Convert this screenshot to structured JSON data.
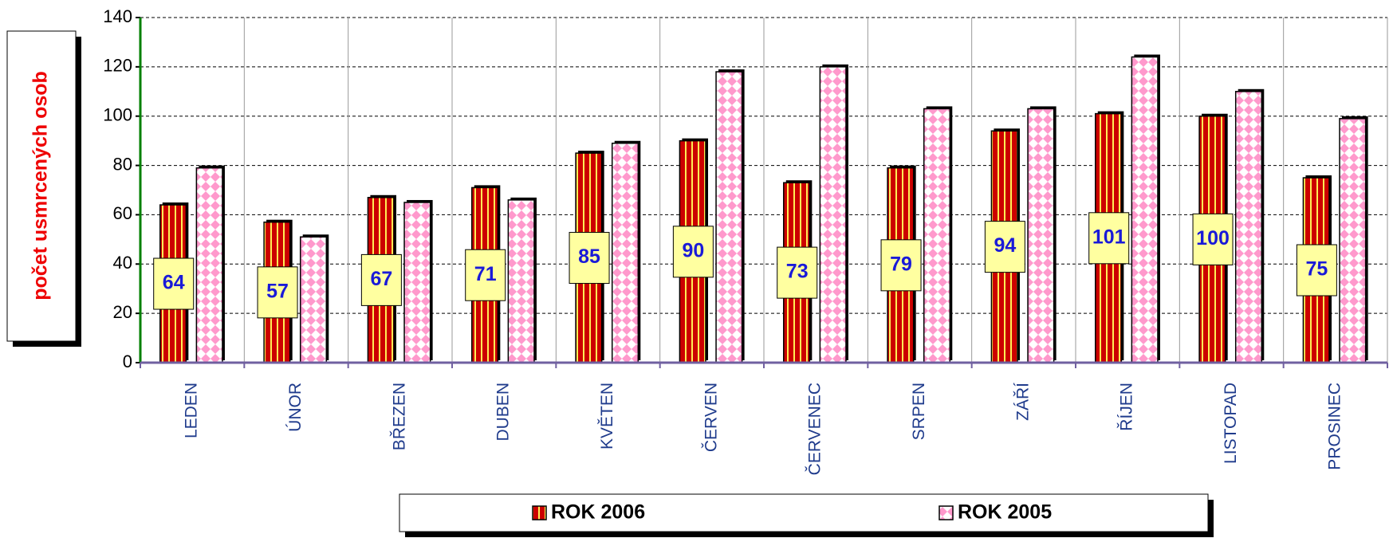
{
  "chart_data": {
    "type": "bar",
    "y_label": "počet usmrcených osob",
    "categories": [
      "LEDEN",
      "ÚNOR",
      "BŘEZEN",
      "DUBEN",
      "KVĚTEN",
      "ČERVEN",
      "ČERVENEC",
      "SRPEN",
      "ZÁŘÍ",
      "ŘÍJEN",
      "LISTOPAD",
      "PROSINEC"
    ],
    "series": [
      {
        "name": "ROK 2006",
        "color": "#cc0000",
        "values": [
          64,
          57,
          67,
          71,
          85,
          90,
          73,
          79,
          94,
          101,
          100,
          75
        ]
      },
      {
        "name": "ROK 2005",
        "color": "#ff99cc",
        "values": [
          79,
          51,
          65,
          66,
          89,
          118,
          120,
          103,
          103,
          124,
          110,
          99
        ]
      }
    ],
    "ylim": [
      0,
      140
    ],
    "yticks": [
      0,
      20,
      40,
      60,
      80,
      100,
      120,
      140
    ],
    "grid": true,
    "legend": "bottom"
  }
}
